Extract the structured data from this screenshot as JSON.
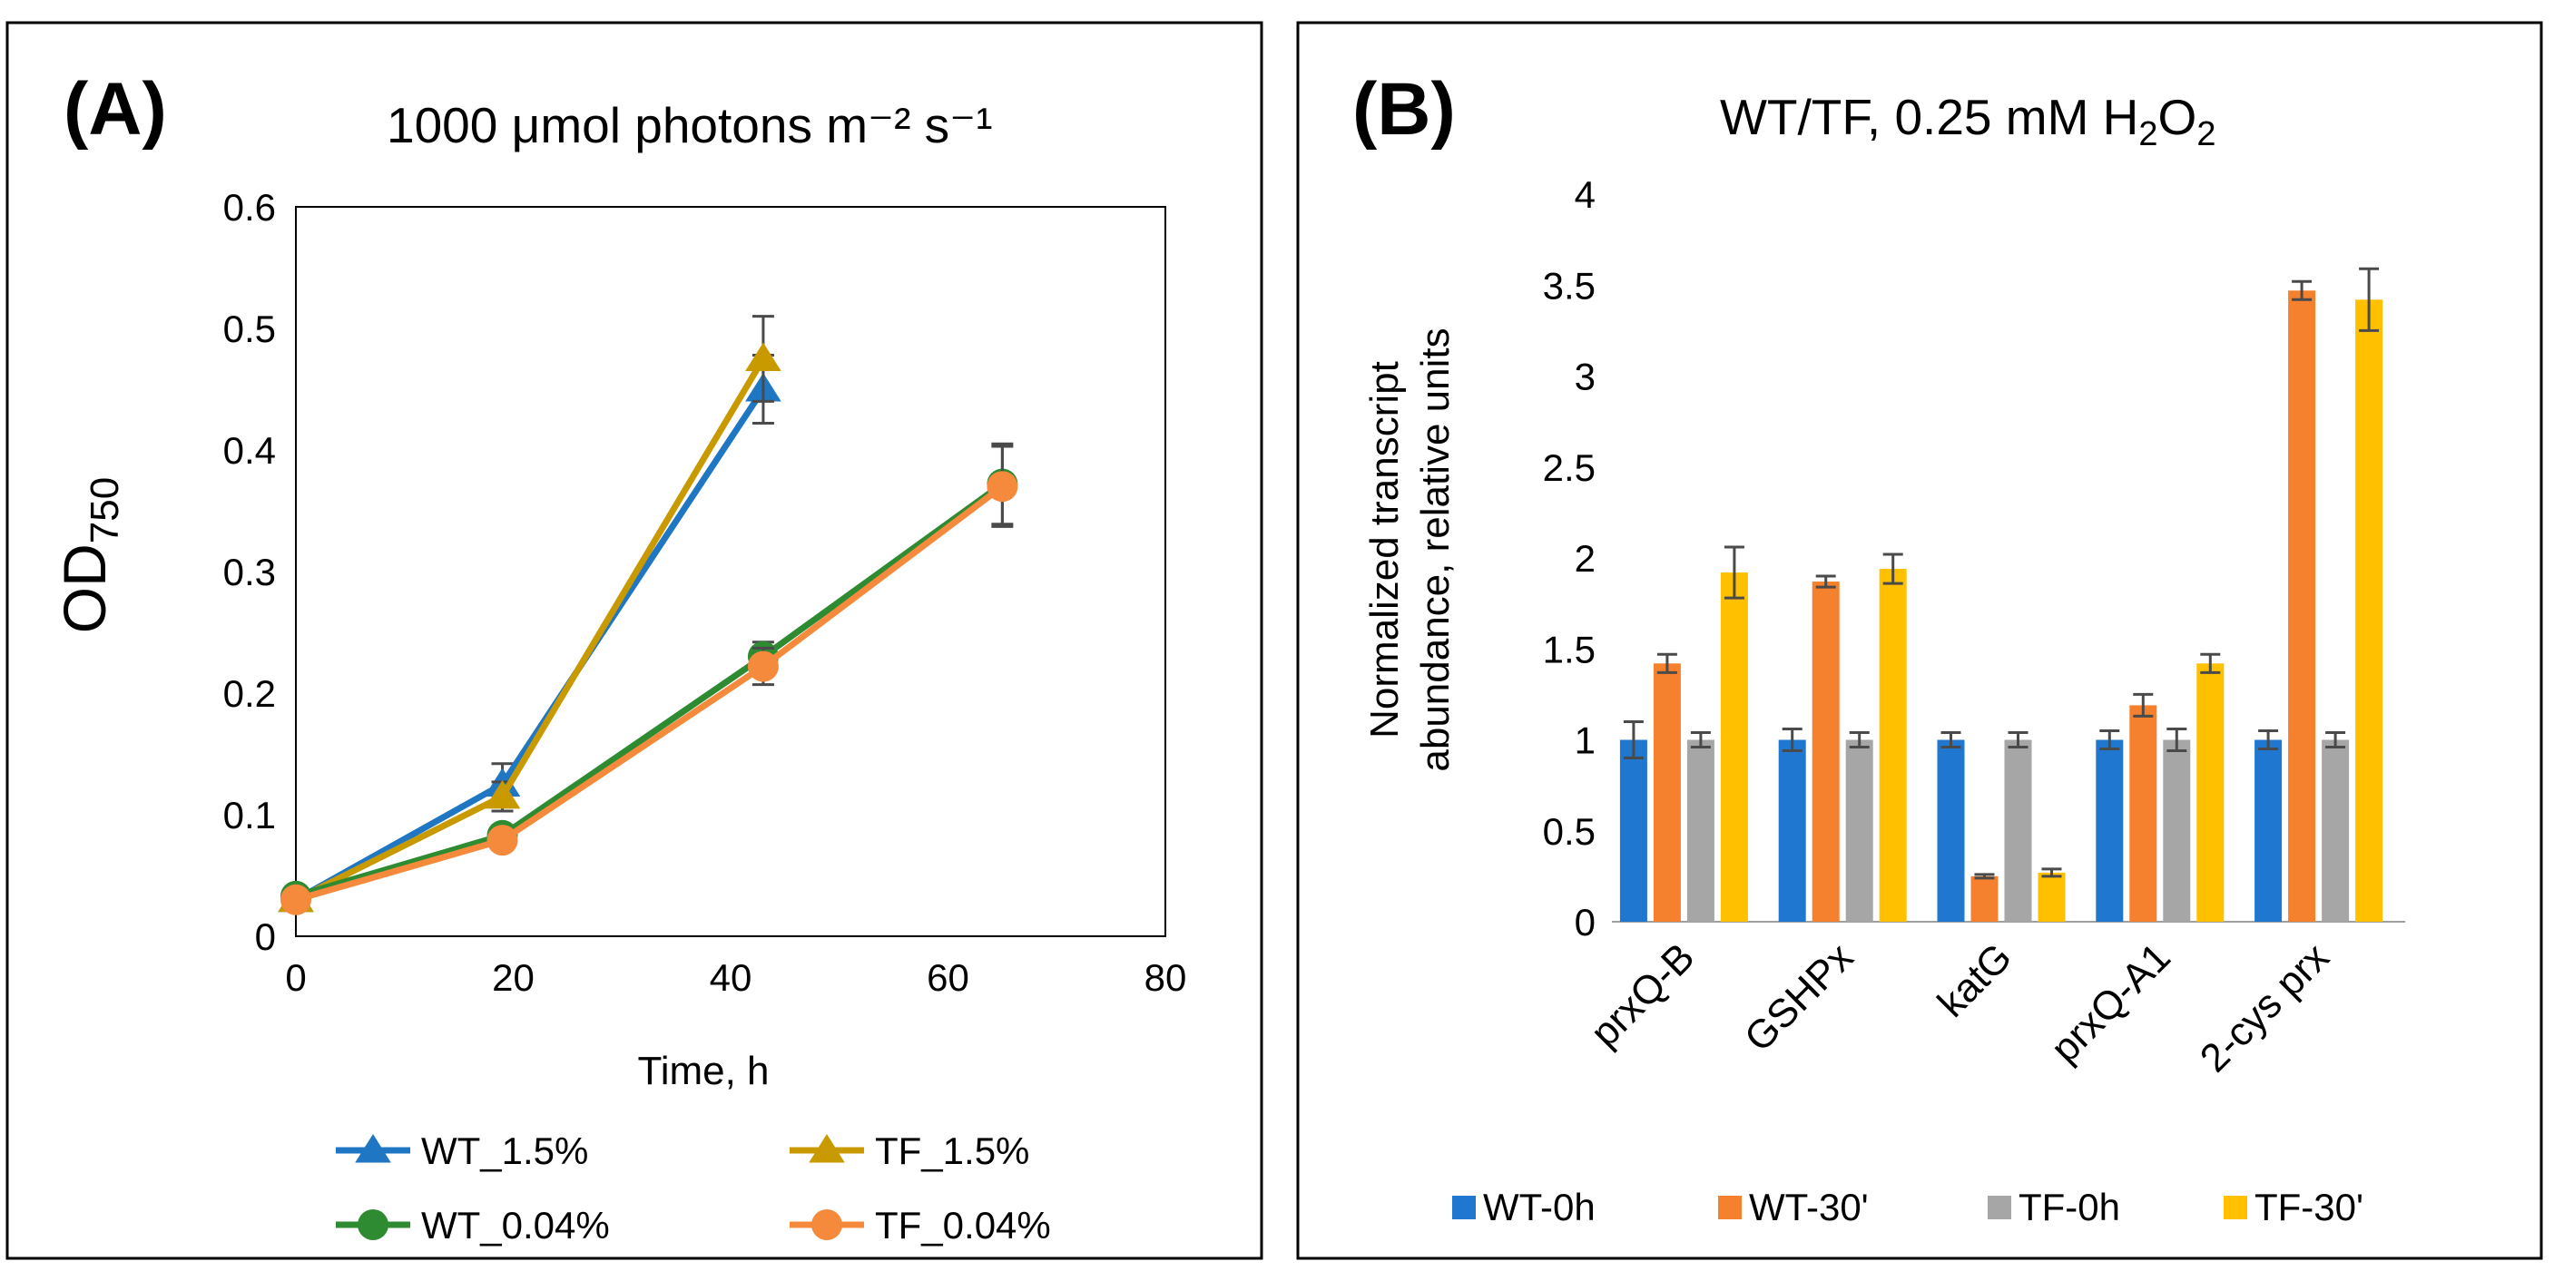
{
  "colors": {
    "wt_high": "#1f77c4",
    "tf_high": "#c89a00",
    "wt_low": "#2e8b32",
    "tf_low": "#f58a3c",
    "bar_wt0": "#1f77d0",
    "bar_wt30": "#f5802e",
    "bar_tf0": "#a6a6a6",
    "bar_tf30": "#ffc000",
    "error": "#4a4a4a"
  },
  "chart_data": [
    {
      "type": "line",
      "panel_label": "(A)",
      "title": "1000 μmol photons m⁻² s⁻¹",
      "xlabel": "Time, h",
      "ylabel": {
        "main": "OD",
        "sub": "750"
      },
      "xlim": [
        0,
        80
      ],
      "ylim": [
        0,
        0.6
      ],
      "x_ticks": [
        0,
        20,
        40,
        60,
        80
      ],
      "x_tick_labels": [
        "0",
        "20",
        "40",
        "60",
        "80"
      ],
      "y_ticks": [
        0,
        0.1,
        0.2,
        0.3,
        0.4,
        0.5,
        0.6
      ],
      "y_tick_labels": [
        "0",
        "0.1",
        "0.2",
        "0.3",
        "0.4",
        "0.5",
        "0.6"
      ],
      "legend_position": "bottom",
      "series": [
        {
          "name": "WT_1.5%",
          "color_key": "wt_high",
          "marker": "triangle",
          "x": [
            0,
            19,
            43
          ],
          "y": [
            0.03,
            0.125,
            0.45
          ],
          "err": [
            0.005,
            0.017,
            0.028
          ]
        },
        {
          "name": "TF_1.5%",
          "color_key": "tf_high",
          "marker": "triangle",
          "x": [
            0,
            19,
            43
          ],
          "y": [
            0.03,
            0.115,
            0.475
          ],
          "err": [
            0.005,
            0.012,
            0.035
          ]
        },
        {
          "name": "WT_0.04%",
          "color_key": "wt_low",
          "marker": "circle",
          "x": [
            0,
            19,
            43,
            65
          ],
          "y": [
            0.033,
            0.083,
            0.23,
            0.372
          ],
          "err": [
            0.005,
            0.006,
            0.012,
            0.033
          ]
        },
        {
          "name": "TF_0.04%",
          "color_key": "tf_low",
          "marker": "circle",
          "x": [
            0,
            19,
            43,
            65
          ],
          "y": [
            0.03,
            0.079,
            0.222,
            0.37
          ],
          "err": [
            0.004,
            0.006,
            0.015,
            0.033
          ]
        }
      ]
    },
    {
      "type": "bar",
      "panel_label": "(B)",
      "title": {
        "main": "WT/TF, 0.25 mM H",
        "sub1": "2",
        "mid": "O",
        "sub2": "2"
      },
      "ylabel": [
        "Normalized transcript",
        "abundance, relative units"
      ],
      "ylim": [
        0,
        4
      ],
      "y_ticks": [
        0,
        0.5,
        1,
        1.5,
        2,
        2.5,
        3,
        3.5,
        4
      ],
      "y_tick_labels": [
        "0",
        "0.5",
        "1",
        "1.5",
        "2",
        "2.5",
        "3",
        "3.5",
        "4"
      ],
      "categories": [
        "prxQ-B",
        "GSHPx",
        "katG",
        "prxQ-A1",
        "2-cys prx"
      ],
      "legend_position": "bottom",
      "series": [
        {
          "name": "WT-0h",
          "color_key": "bar_wt0",
          "values": [
            1.0,
            1.0,
            1.0,
            1.0,
            1.0
          ],
          "err": [
            0.1,
            0.06,
            0.04,
            0.05,
            0.05
          ]
        },
        {
          "name": "WT-30'",
          "color_key": "bar_wt30",
          "values": [
            1.42,
            1.87,
            0.25,
            1.19,
            3.47
          ],
          "err": [
            0.05,
            0.03,
            0.01,
            0.06,
            0.05
          ]
        },
        {
          "name": "TF-0h",
          "color_key": "bar_tf0",
          "values": [
            1.0,
            1.0,
            1.0,
            1.0,
            1.0
          ],
          "err": [
            0.04,
            0.04,
            0.04,
            0.06,
            0.04
          ]
        },
        {
          "name": "TF-30'",
          "color_key": "bar_tf30",
          "values": [
            1.92,
            1.94,
            0.27,
            1.42,
            3.42
          ],
          "err": [
            0.14,
            0.08,
            0.02,
            0.05,
            0.17
          ]
        }
      ]
    }
  ]
}
